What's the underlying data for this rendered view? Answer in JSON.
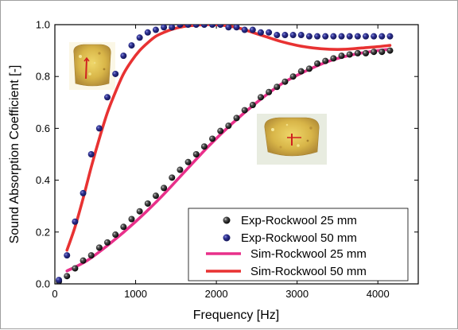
{
  "chart_data": {
    "type": "line",
    "xlabel": "Frequency [Hz]",
    "ylabel": "Sound Absorption Coefficient [-]",
    "xlim": [
      0,
      4500
    ],
    "ylim": [
      0,
      1.0
    ],
    "x_ticks": [
      0,
      1000,
      2000,
      3000,
      4000
    ],
    "y_ticks": [
      0.0,
      0.2,
      0.4,
      0.6,
      0.8,
      1.0
    ],
    "x_tick_labels": [
      "0",
      "1000",
      "2000",
      "3000",
      "4000"
    ],
    "y_tick_labels": [
      "0.0",
      "0.2",
      "0.4",
      "0.6",
      "0.8",
      "1.0"
    ],
    "grid": false,
    "legend_position": "bottom-right",
    "series": [
      {
        "name": "Exp-Rockwool 25 mm",
        "kind": "scatter",
        "color": "#111111",
        "x": [
          50,
          150,
          250,
          350,
          450,
          550,
          650,
          750,
          850,
          950,
          1050,
          1150,
          1250,
          1350,
          1450,
          1550,
          1650,
          1750,
          1850,
          1950,
          2050,
          2150,
          2250,
          2350,
          2450,
          2550,
          2650,
          2750,
          2850,
          2950,
          3050,
          3150,
          3250,
          3350,
          3450,
          3550,
          3650,
          3750,
          3850,
          3950,
          4050,
          4150
        ],
        "y": [
          0.01,
          0.03,
          0.06,
          0.09,
          0.11,
          0.14,
          0.16,
          0.19,
          0.22,
          0.25,
          0.28,
          0.31,
          0.34,
          0.37,
          0.41,
          0.44,
          0.47,
          0.5,
          0.53,
          0.56,
          0.59,
          0.61,
          0.64,
          0.67,
          0.69,
          0.72,
          0.74,
          0.76,
          0.78,
          0.8,
          0.82,
          0.83,
          0.85,
          0.86,
          0.87,
          0.88,
          0.885,
          0.89,
          0.89,
          0.895,
          0.895,
          0.9
        ]
      },
      {
        "name": "Exp-Rockwool 50 mm",
        "kind": "scatter",
        "color": "#2e3190",
        "x": [
          50,
          150,
          250,
          350,
          450,
          550,
          650,
          750,
          850,
          950,
          1050,
          1150,
          1250,
          1350,
          1450,
          1550,
          1650,
          1750,
          1850,
          1950,
          2050,
          2150,
          2250,
          2350,
          2450,
          2550,
          2650,
          2750,
          2850,
          2950,
          3050,
          3150,
          3250,
          3350,
          3450,
          3550,
          3650,
          3750,
          3850,
          3950,
          4050,
          4150
        ],
        "y": [
          0.015,
          0.11,
          0.24,
          0.35,
          0.5,
          0.6,
          0.72,
          0.81,
          0.88,
          0.92,
          0.95,
          0.97,
          0.98,
          0.99,
          0.99,
          1.0,
          1.0,
          1.0,
          1.0,
          1.0,
          1.0,
          0.99,
          0.99,
          0.98,
          0.98,
          0.97,
          0.97,
          0.96,
          0.96,
          0.96,
          0.96,
          0.955,
          0.955,
          0.955,
          0.955,
          0.955,
          0.955,
          0.955,
          0.955,
          0.955,
          0.955,
          0.955
        ]
      },
      {
        "name": "Sim-Rockwool 25 mm",
        "kind": "line",
        "color": "#e8308a",
        "x": [
          150,
          400,
          700,
          1000,
          1300,
          1600,
          1900,
          2200,
          2500,
          2800,
          3100,
          3400,
          3700,
          4000,
          4150
        ],
        "y": [
          0.05,
          0.09,
          0.16,
          0.24,
          0.33,
          0.43,
          0.53,
          0.62,
          0.7,
          0.77,
          0.82,
          0.86,
          0.885,
          0.9,
          0.905
        ]
      },
      {
        "name": "Sim-Rockwool 50 mm",
        "kind": "line",
        "color": "#e83232",
        "x": [
          150,
          250,
          350,
          450,
          550,
          650,
          750,
          850,
          950,
          1050,
          1150,
          1250,
          1350,
          1450,
          1550,
          1650,
          1750,
          1850,
          1950,
          2050,
          2150,
          2300,
          2450,
          2600,
          2800,
          3000,
          3200,
          3400,
          3600,
          3800,
          4000,
          4150
        ],
        "y": [
          0.13,
          0.22,
          0.33,
          0.45,
          0.56,
          0.66,
          0.74,
          0.81,
          0.86,
          0.9,
          0.93,
          0.955,
          0.97,
          0.982,
          0.99,
          0.995,
          0.998,
          1.0,
          1.0,
          0.998,
          0.995,
          0.985,
          0.97,
          0.955,
          0.935,
          0.92,
          0.91,
          0.905,
          0.905,
          0.91,
          0.915,
          0.92
        ]
      }
    ],
    "insets": [
      {
        "name": "Rockwool 50 mm sample photo"
      },
      {
        "name": "Rockwool 25 mm sample photo"
      }
    ]
  }
}
